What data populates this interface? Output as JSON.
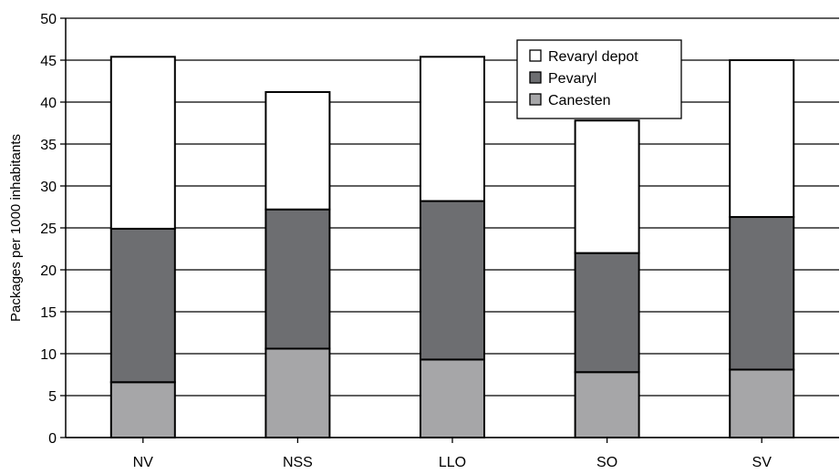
{
  "chart_data": {
    "type": "bar",
    "stacked": true,
    "title": "",
    "xlabel": "",
    "ylabel": "Packages per 1000 inhabitants",
    "ylim": [
      0,
      50
    ],
    "ytick_step": 5,
    "yticks": [
      "0",
      "5",
      "10",
      "15",
      "20",
      "25",
      "30",
      "35",
      "40",
      "45",
      "50"
    ],
    "grid": "horizontal",
    "legend_position": "top-right",
    "categories": [
      "NV",
      "NSS",
      "LLO",
      "SO",
      "SV"
    ],
    "series": [
      {
        "name": "Canesten",
        "color": "#a6a6a8",
        "values": [
          6.6,
          10.6,
          9.3,
          7.8,
          8.1
        ]
      },
      {
        "name": "Pevaryl",
        "color": "#6d6e71",
        "values": [
          18.3,
          16.6,
          18.9,
          14.2,
          18.2
        ]
      },
      {
        "name": "Revaryl depot",
        "color": "#ffffff",
        "values": [
          20.5,
          14.0,
          17.2,
          15.8,
          18.7
        ]
      }
    ],
    "legend_order": [
      "Revaryl depot",
      "Pevaryl",
      "Canesten"
    ]
  }
}
